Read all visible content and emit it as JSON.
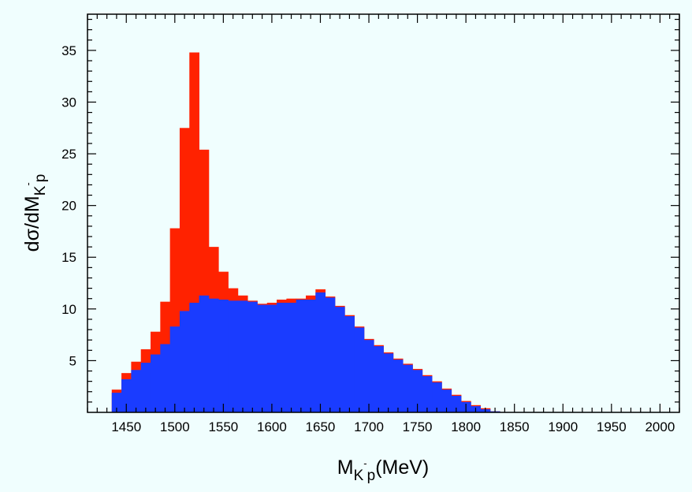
{
  "chart_data": {
    "type": "bar",
    "title": "",
    "xlabel": {
      "base": "M",
      "sub1": "K",
      "sup": "-",
      "sub2": "p",
      "rest": "(MeV)"
    },
    "ylabel": {
      "base": "dσ/dM",
      "sub1": "K",
      "sup": "-",
      "sub2": "p"
    },
    "xlim": [
      1410,
      2020
    ],
    "ylim": [
      0,
      38.5
    ],
    "bin_start": 1435,
    "bin_width": 10,
    "x_ticks": [
      1450,
      1500,
      1550,
      1600,
      1650,
      1700,
      1750,
      1800,
      1850,
      1900,
      1950,
      2000
    ],
    "y_ticks": [
      5,
      10,
      15,
      20,
      25,
      30,
      35
    ],
    "grid": false,
    "legend": "none",
    "colors": {
      "total": "#ff2200",
      "background": "#1a3cff",
      "plot_bg": "#f0fefe"
    },
    "series": [
      {
        "role": "total",
        "values": [
          2.2,
          3.8,
          4.9,
          6.1,
          7.8,
          10.7,
          17.8,
          27.5,
          34.8,
          25.4,
          16.0,
          13.6,
          12.0,
          11.3,
          10.8,
          10.5,
          10.6,
          10.9,
          11.0,
          11.0,
          11.3,
          11.9,
          11.2,
          10.3,
          9.4,
          8.3,
          7.1,
          6.5,
          5.8,
          5.2,
          4.7,
          4.2,
          3.6,
          3.0,
          2.3,
          1.7,
          1.1,
          0.7,
          0.4,
          0.1
        ]
      },
      {
        "role": "background",
        "values": [
          1.9,
          3.2,
          4.1,
          4.8,
          5.6,
          6.6,
          8.3,
          9.8,
          10.6,
          11.3,
          11.0,
          10.9,
          10.8,
          10.8,
          10.7,
          10.4,
          10.4,
          10.6,
          10.6,
          10.9,
          10.9,
          11.6,
          11.1,
          10.2,
          9.3,
          8.2,
          7.0,
          6.4,
          5.7,
          5.1,
          4.6,
          4.1,
          3.5,
          2.9,
          2.2,
          1.6,
          1.0,
          0.6,
          0.3,
          0.1
        ]
      }
    ]
  }
}
